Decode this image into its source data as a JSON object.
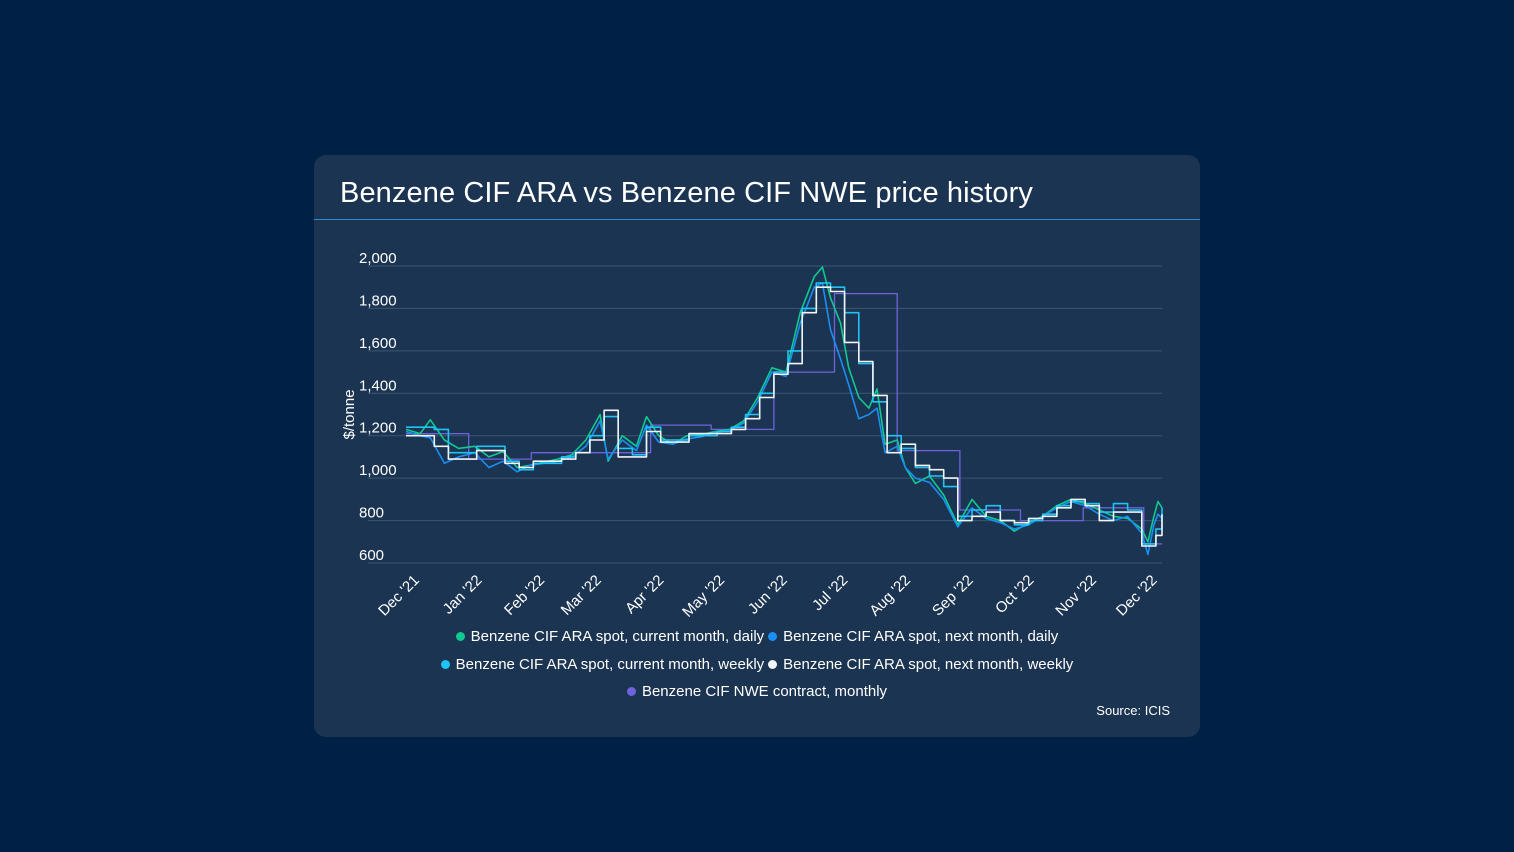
{
  "card": {
    "title": "Benzene CIF ARA vs Benzene CIF NWE price history",
    "source": "Source: ICIS"
  },
  "colors": {
    "background": "#002046",
    "card": "#1b3452",
    "grid": "#3c5673",
    "title_rule": "#2f8fc4"
  },
  "legend_rows": [
    [
      0,
      1
    ],
    [
      2,
      3
    ],
    [
      4
    ]
  ],
  "chart_data": {
    "type": "line",
    "title": "Benzene CIF ARA vs Benzene CIF NWE price history",
    "xlabel": "",
    "ylabel": "$/tonne",
    "ylim": [
      600,
      2000
    ],
    "yticks": [
      600,
      800,
      1000,
      1200,
      1400,
      1600,
      1800,
      2000
    ],
    "ytick_labels": [
      "600",
      "800",
      "1,000",
      "1,200",
      "1,400",
      "1,600",
      "1,800",
      "2,000"
    ],
    "xlim": [
      "2021-12-01",
      "2022-12-10"
    ],
    "xticks": [
      "2021-12-01",
      "2022-01-01",
      "2022-02-01",
      "2022-03-01",
      "2022-04-01",
      "2022-05-01",
      "2022-06-01",
      "2022-07-01",
      "2022-08-01",
      "2022-09-01",
      "2022-10-01",
      "2022-11-01",
      "2022-12-01"
    ],
    "xtick_labels": [
      "Dec '21",
      "Jan '22",
      "Feb '22",
      "Mar '22",
      "Apr '22",
      "May '22",
      "Jun '22",
      "Jul '22",
      "Aug '22",
      "Sep '22",
      "Oct '22",
      "Nov '22",
      "Dec '22"
    ],
    "grid": true,
    "legend_position": "bottom",
    "series": [
      {
        "name": "Benzene CIF ARA spot, current month, daily",
        "color": "#10c991",
        "step": false,
        "points": [
          [
            "2021-12-01",
            1230
          ],
          [
            "2021-12-08",
            1210
          ],
          [
            "2021-12-13",
            1275
          ],
          [
            "2021-12-20",
            1180
          ],
          [
            "2021-12-27",
            1140
          ],
          [
            "2022-01-04",
            1150
          ],
          [
            "2022-01-11",
            1100
          ],
          [
            "2022-01-18",
            1125
          ],
          [
            "2022-01-25",
            1050
          ],
          [
            "2022-01-31",
            1060
          ],
          [
            "2022-02-07",
            1075
          ],
          [
            "2022-02-14",
            1090
          ],
          [
            "2022-02-21",
            1110
          ],
          [
            "2022-02-28",
            1180
          ],
          [
            "2022-03-07",
            1300
          ],
          [
            "2022-03-11",
            1080
          ],
          [
            "2022-03-18",
            1200
          ],
          [
            "2022-03-25",
            1150
          ],
          [
            "2022-03-30",
            1290
          ],
          [
            "2022-04-05",
            1200
          ],
          [
            "2022-04-12",
            1160
          ],
          [
            "2022-04-19",
            1200
          ],
          [
            "2022-04-26",
            1205
          ],
          [
            "2022-05-03",
            1220
          ],
          [
            "2022-05-10",
            1230
          ],
          [
            "2022-05-17",
            1270
          ],
          [
            "2022-05-24",
            1380
          ],
          [
            "2022-05-31",
            1520
          ],
          [
            "2022-06-07",
            1500
          ],
          [
            "2022-06-14",
            1780
          ],
          [
            "2022-06-21",
            1950
          ],
          [
            "2022-06-25",
            1995
          ],
          [
            "2022-06-29",
            1850
          ],
          [
            "2022-07-04",
            1730
          ],
          [
            "2022-07-08",
            1520
          ],
          [
            "2022-07-13",
            1380
          ],
          [
            "2022-07-18",
            1330
          ],
          [
            "2022-07-22",
            1420
          ],
          [
            "2022-07-26",
            1160
          ],
          [
            "2022-08-01",
            1180
          ],
          [
            "2022-08-05",
            1050
          ],
          [
            "2022-08-10",
            975
          ],
          [
            "2022-08-17",
            1010
          ],
          [
            "2022-08-24",
            920
          ],
          [
            "2022-08-31",
            780
          ],
          [
            "2022-09-07",
            900
          ],
          [
            "2022-09-14",
            820
          ],
          [
            "2022-09-21",
            800
          ],
          [
            "2022-09-28",
            750
          ],
          [
            "2022-10-05",
            790
          ],
          [
            "2022-10-12",
            820
          ],
          [
            "2022-10-19",
            870
          ],
          [
            "2022-10-26",
            900
          ],
          [
            "2022-11-02",
            880
          ],
          [
            "2022-11-09",
            850
          ],
          [
            "2022-11-16",
            820
          ],
          [
            "2022-11-23",
            810
          ],
          [
            "2022-11-30",
            760
          ],
          [
            "2022-12-03",
            700
          ],
          [
            "2022-12-06",
            820
          ],
          [
            "2022-12-08",
            890
          ],
          [
            "2022-12-10",
            860
          ]
        ]
      },
      {
        "name": "Benzene CIF ARA spot, next month, daily",
        "color": "#1a8ff2",
        "step": false,
        "points": [
          [
            "2021-12-01",
            1220
          ],
          [
            "2021-12-08",
            1200
          ],
          [
            "2021-12-13",
            1190
          ],
          [
            "2021-12-20",
            1070
          ],
          [
            "2021-12-27",
            1100
          ],
          [
            "2022-01-04",
            1120
          ],
          [
            "2022-01-11",
            1050
          ],
          [
            "2022-01-18",
            1080
          ],
          [
            "2022-01-25",
            1030
          ],
          [
            "2022-01-31",
            1060
          ],
          [
            "2022-02-07",
            1070
          ],
          [
            "2022-02-14",
            1080
          ],
          [
            "2022-02-21",
            1100
          ],
          [
            "2022-02-28",
            1150
          ],
          [
            "2022-03-07",
            1270
          ],
          [
            "2022-03-11",
            1090
          ],
          [
            "2022-03-18",
            1180
          ],
          [
            "2022-03-25",
            1130
          ],
          [
            "2022-03-30",
            1250
          ],
          [
            "2022-04-05",
            1170
          ],
          [
            "2022-04-12",
            1160
          ],
          [
            "2022-04-19",
            1185
          ],
          [
            "2022-04-26",
            1195
          ],
          [
            "2022-05-03",
            1215
          ],
          [
            "2022-05-10",
            1225
          ],
          [
            "2022-05-17",
            1260
          ],
          [
            "2022-05-24",
            1360
          ],
          [
            "2022-05-31",
            1500
          ],
          [
            "2022-06-07",
            1480
          ],
          [
            "2022-06-14",
            1730
          ],
          [
            "2022-06-21",
            1900
          ],
          [
            "2022-06-25",
            1920
          ],
          [
            "2022-06-29",
            1700
          ],
          [
            "2022-07-04",
            1560
          ],
          [
            "2022-07-08",
            1440
          ],
          [
            "2022-07-13",
            1280
          ],
          [
            "2022-07-18",
            1300
          ],
          [
            "2022-07-22",
            1330
          ],
          [
            "2022-07-26",
            1120
          ],
          [
            "2022-08-01",
            1150
          ],
          [
            "2022-08-05",
            1050
          ],
          [
            "2022-08-10",
            1000
          ],
          [
            "2022-08-17",
            980
          ],
          [
            "2022-08-24",
            900
          ],
          [
            "2022-08-31",
            770
          ],
          [
            "2022-09-07",
            860
          ],
          [
            "2022-09-14",
            810
          ],
          [
            "2022-09-21",
            790
          ],
          [
            "2022-09-28",
            760
          ],
          [
            "2022-10-05",
            780
          ],
          [
            "2022-10-12",
            820
          ],
          [
            "2022-10-19",
            860
          ],
          [
            "2022-10-26",
            890
          ],
          [
            "2022-11-02",
            870
          ],
          [
            "2022-11-09",
            830
          ],
          [
            "2022-11-16",
            800
          ],
          [
            "2022-11-23",
            820
          ],
          [
            "2022-11-30",
            740
          ],
          [
            "2022-12-03",
            640
          ],
          [
            "2022-12-06",
            780
          ],
          [
            "2022-12-08",
            830
          ],
          [
            "2022-12-10",
            810
          ]
        ]
      },
      {
        "name": "Benzene CIF ARA spot, current month, weekly",
        "color": "#20c4f4",
        "step": true,
        "points": [
          [
            "2021-12-01",
            1240
          ],
          [
            "2021-12-15",
            1230
          ],
          [
            "2021-12-22",
            1120
          ],
          [
            "2022-01-05",
            1150
          ],
          [
            "2022-01-19",
            1080
          ],
          [
            "2022-01-26",
            1040
          ],
          [
            "2022-02-02",
            1070
          ],
          [
            "2022-02-16",
            1100
          ],
          [
            "2022-02-23",
            1120
          ],
          [
            "2022-03-02",
            1200
          ],
          [
            "2022-03-09",
            1290
          ],
          [
            "2022-03-16",
            1140
          ],
          [
            "2022-03-23",
            1110
          ],
          [
            "2022-03-30",
            1240
          ],
          [
            "2022-04-06",
            1180
          ],
          [
            "2022-04-20",
            1200
          ],
          [
            "2022-05-04",
            1220
          ],
          [
            "2022-05-11",
            1240
          ],
          [
            "2022-05-18",
            1300
          ],
          [
            "2022-05-25",
            1400
          ],
          [
            "2022-06-01",
            1500
          ],
          [
            "2022-06-08",
            1600
          ],
          [
            "2022-06-15",
            1800
          ],
          [
            "2022-06-22",
            1920
          ],
          [
            "2022-06-29",
            1900
          ],
          [
            "2022-07-06",
            1780
          ],
          [
            "2022-07-13",
            1540
          ],
          [
            "2022-07-20",
            1360
          ],
          [
            "2022-07-27",
            1200
          ],
          [
            "2022-08-03",
            1140
          ],
          [
            "2022-08-10",
            1050
          ],
          [
            "2022-08-17",
            1010
          ],
          [
            "2022-08-24",
            960
          ],
          [
            "2022-08-31",
            820
          ],
          [
            "2022-09-07",
            850
          ],
          [
            "2022-09-14",
            870
          ],
          [
            "2022-09-21",
            800
          ],
          [
            "2022-09-28",
            780
          ],
          [
            "2022-10-05",
            800
          ],
          [
            "2022-10-12",
            830
          ],
          [
            "2022-10-19",
            870
          ],
          [
            "2022-10-26",
            890
          ],
          [
            "2022-11-02",
            880
          ],
          [
            "2022-11-09",
            840
          ],
          [
            "2022-11-16",
            880
          ],
          [
            "2022-11-23",
            850
          ],
          [
            "2022-11-30",
            690
          ],
          [
            "2022-12-07",
            760
          ],
          [
            "2022-12-10",
            860
          ]
        ]
      },
      {
        "name": "Benzene CIF ARA spot, next month, weekly",
        "color": "#f2f4f7",
        "step": true,
        "points": [
          [
            "2021-12-01",
            1200
          ],
          [
            "2021-12-15",
            1150
          ],
          [
            "2021-12-22",
            1090
          ],
          [
            "2022-01-05",
            1130
          ],
          [
            "2022-01-19",
            1070
          ],
          [
            "2022-01-26",
            1050
          ],
          [
            "2022-02-02",
            1080
          ],
          [
            "2022-02-16",
            1090
          ],
          [
            "2022-02-23",
            1120
          ],
          [
            "2022-03-02",
            1180
          ],
          [
            "2022-03-09",
            1320
          ],
          [
            "2022-03-16",
            1100
          ],
          [
            "2022-03-23",
            1100
          ],
          [
            "2022-03-30",
            1220
          ],
          [
            "2022-04-06",
            1170
          ],
          [
            "2022-04-20",
            1210
          ],
          [
            "2022-05-04",
            1210
          ],
          [
            "2022-05-11",
            1230
          ],
          [
            "2022-05-18",
            1280
          ],
          [
            "2022-05-25",
            1380
          ],
          [
            "2022-06-01",
            1490
          ],
          [
            "2022-06-08",
            1540
          ],
          [
            "2022-06-15",
            1780
          ],
          [
            "2022-06-22",
            1900
          ],
          [
            "2022-06-29",
            1880
          ],
          [
            "2022-07-06",
            1640
          ],
          [
            "2022-07-13",
            1550
          ],
          [
            "2022-07-20",
            1390
          ],
          [
            "2022-07-27",
            1120
          ],
          [
            "2022-08-03",
            1160
          ],
          [
            "2022-08-10",
            1060
          ],
          [
            "2022-08-17",
            1040
          ],
          [
            "2022-08-24",
            1000
          ],
          [
            "2022-08-31",
            800
          ],
          [
            "2022-09-07",
            820
          ],
          [
            "2022-09-14",
            840
          ],
          [
            "2022-09-21",
            800
          ],
          [
            "2022-09-28",
            790
          ],
          [
            "2022-10-05",
            810
          ],
          [
            "2022-10-12",
            820
          ],
          [
            "2022-10-19",
            860
          ],
          [
            "2022-10-26",
            900
          ],
          [
            "2022-11-02",
            870
          ],
          [
            "2022-11-09",
            800
          ],
          [
            "2022-11-16",
            840
          ],
          [
            "2022-11-23",
            840
          ],
          [
            "2022-11-30",
            680
          ],
          [
            "2022-12-07",
            730
          ],
          [
            "2022-12-10",
            830
          ]
        ]
      },
      {
        "name": "Benzene CIF NWE contract, monthly",
        "color": "#6e63dd",
        "step": true,
        "points": [
          [
            "2021-12-01",
            1210
          ],
          [
            "2022-01-01",
            1090
          ],
          [
            "2022-02-01",
            1120
          ],
          [
            "2022-03-01",
            1120
          ],
          [
            "2022-04-01",
            1250
          ],
          [
            "2022-05-01",
            1230
          ],
          [
            "2022-06-01",
            1500
          ],
          [
            "2022-07-01",
            1870
          ],
          [
            "2022-08-01",
            1130
          ],
          [
            "2022-09-01",
            850
          ],
          [
            "2022-10-01",
            800
          ],
          [
            "2022-11-01",
            860
          ],
          [
            "2022-12-01",
            690
          ],
          [
            "2022-12-10",
            690
          ]
        ]
      }
    ]
  }
}
